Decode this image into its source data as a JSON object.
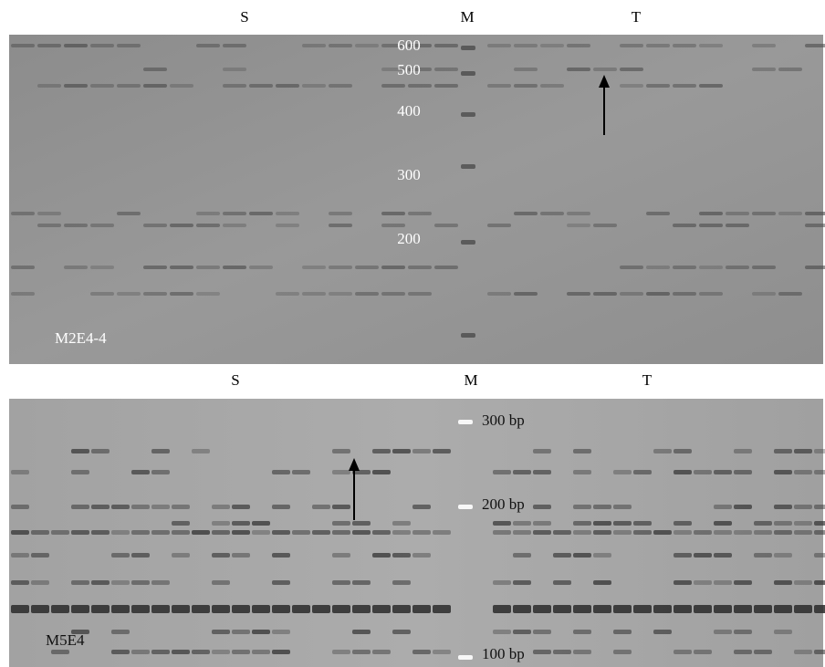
{
  "panels": [
    {
      "lane_labels": {
        "s": "S",
        "m": "M",
        "t": "T"
      },
      "marker_labels": [
        "600",
        "500",
        "400",
        "300",
        "200"
      ],
      "name": "M2E4-4"
    },
    {
      "lane_labels": {
        "s": "S",
        "m": "M",
        "t": "T"
      },
      "marker_labels": [
        "300 bp",
        "200 bp",
        "100 bp"
      ],
      "name": "M5E4"
    }
  ]
}
